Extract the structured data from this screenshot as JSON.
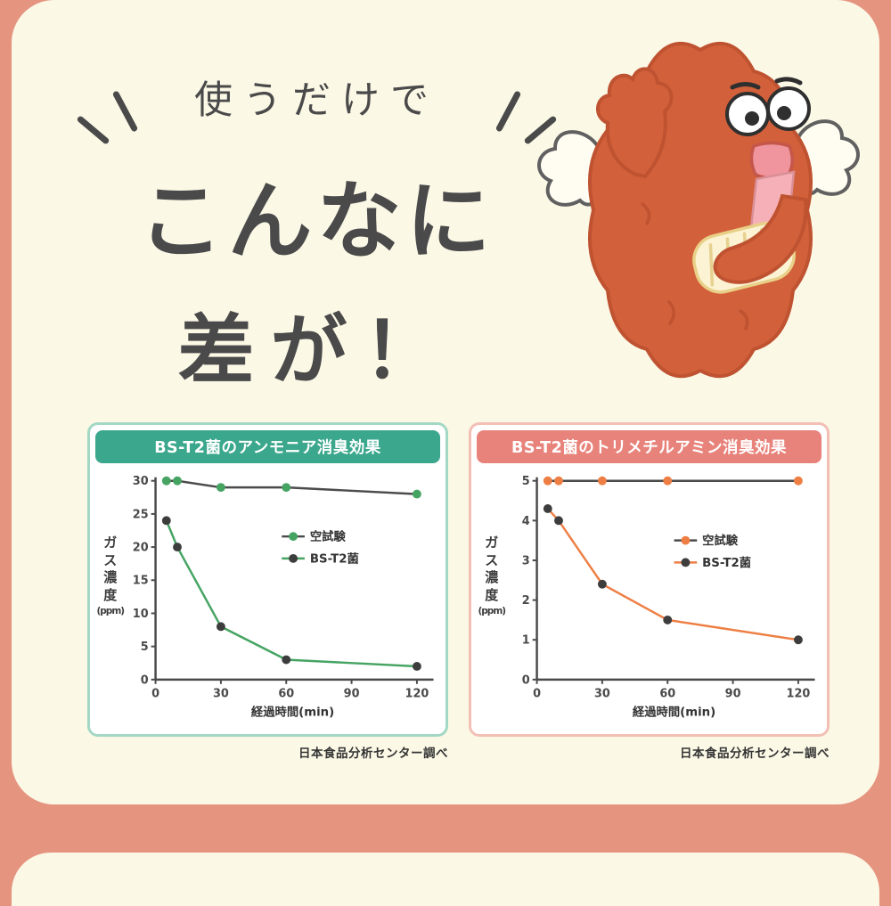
{
  "palette": {
    "background": "#e5947f",
    "card": "#fbf8e6",
    "text": "#4a4a4a",
    "ammonia_title_bg": "#3ba78c",
    "ammonia_border": "#a3d8c4",
    "trimethylamine_title_bg": "#e8837b",
    "trimethylamine_border": "#f3bfb5",
    "green_series": "#46a463",
    "orange_series": "#ee7f44",
    "dark_series": "#3d3d3d",
    "mascot_orange": "#d2603a"
  },
  "header": {
    "line1": "使うだけで",
    "line2": "こんなに",
    "line3": "差が！"
  },
  "chart_data": [
    {
      "type": "line",
      "title": "BS-T2菌のアンモニア消臭効果",
      "xlabel": "経過時間(min)",
      "ylabel": "ガス濃度",
      "ylabel_unit": "(ppm)",
      "x": [
        5,
        10,
        30,
        60,
        120
      ],
      "xlim": [
        0,
        126
      ],
      "xticks": [
        0,
        30,
        60,
        90,
        120
      ],
      "ylim": [
        0,
        30
      ],
      "yticks": [
        0,
        5,
        10,
        15,
        20,
        25,
        30
      ],
      "legend_pos": [
        0.46,
        0.28
      ],
      "title_bg": "#3ba78c",
      "border_color": "#a3d8c4",
      "series": [
        {
          "name": "空試験",
          "values": [
            30,
            30,
            29,
            29,
            28
          ],
          "line_color": "#4b4b4b",
          "marker_color": "#46a463"
        },
        {
          "name": "BS-T2菌",
          "values": [
            24,
            20,
            8,
            3,
            2
          ],
          "line_color": "#46a463",
          "marker_color": "#3d3d3d"
        }
      ],
      "source": "日本食品分析センター調べ"
    },
    {
      "type": "line",
      "title": "BS-T2菌のトリメチルアミン消臭効果",
      "xlabel": "経過時間(min)",
      "ylabel": "ガス濃度",
      "ylabel_unit": "(ppm)",
      "x": [
        5,
        10,
        30,
        60,
        120
      ],
      "xlim": [
        0,
        126
      ],
      "xticks": [
        0,
        30,
        60,
        90,
        120
      ],
      "ylim": [
        0,
        5
      ],
      "yticks": [
        0,
        1,
        2,
        3,
        4,
        5
      ],
      "legend_pos": [
        0.5,
        0.3
      ],
      "title_bg": "#e8837b",
      "border_color": "#f3bfb5",
      "series": [
        {
          "name": "空試験",
          "values": [
            5,
            5,
            5,
            5,
            5
          ],
          "line_color": "#4b4b4b",
          "marker_color": "#ee7f44"
        },
        {
          "name": "BS-T2菌",
          "values": [
            4.3,
            4,
            2.4,
            1.5,
            1
          ],
          "line_color": "#ee7f44",
          "marker_color": "#3d3d3d"
        }
      ],
      "source": "日本食品分析センター調べ"
    }
  ]
}
